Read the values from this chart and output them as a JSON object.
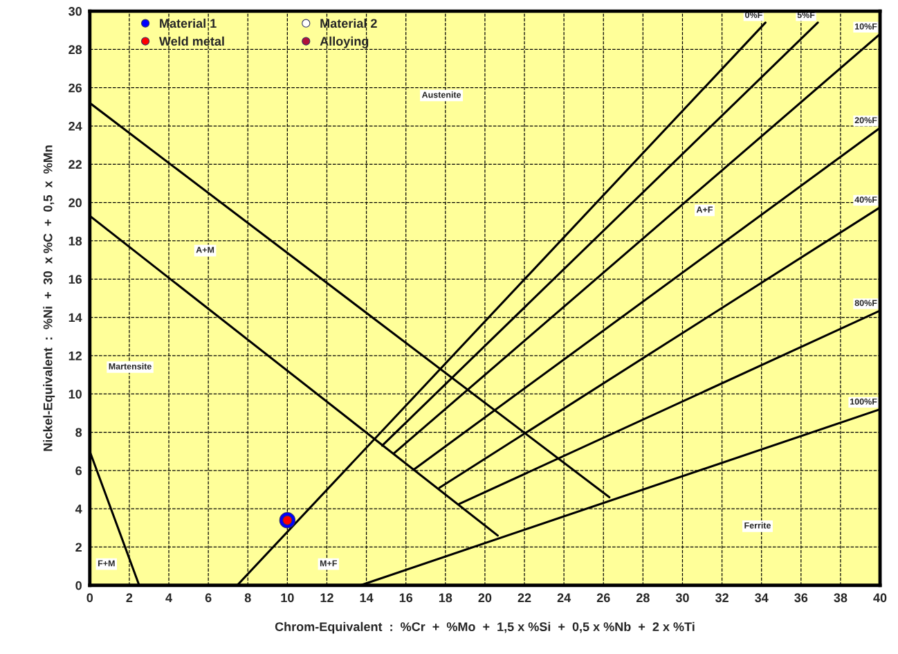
{
  "chart_data": {
    "type": "line",
    "xlabel": "Chrom-Equivalent  :  %Cr  +  %Mo  +  1,5 x %Si  +  0,5 x %Nb  +  2 x %Ti",
    "ylabel": "Nickel-Equivalent  :  %Ni  +  30  x %C  +  0,5  x  %Mn",
    "xlim": [
      0,
      40
    ],
    "ylim": [
      0,
      30
    ],
    "xticks": [
      0,
      2,
      4,
      6,
      8,
      10,
      12,
      14,
      16,
      18,
      20,
      22,
      24,
      26,
      28,
      30,
      32,
      34,
      36,
      38,
      40
    ],
    "yticks": [
      0,
      2,
      4,
      6,
      8,
      10,
      12,
      14,
      16,
      18,
      20,
      22,
      24,
      26,
      28,
      30
    ],
    "grid": true,
    "legend": "top left",
    "line_style": "solid",
    "series": [
      {
        "color": "#000000",
        "x": [
          0,
          2.5
        ],
        "values": [
          7,
          0
        ]
      },
      {
        "color": "#000000",
        "x": [
          0,
          26.3
        ],
        "values": [
          25.2,
          4.6
        ]
      },
      {
        "color": "#000000",
        "x": [
          0,
          20.65
        ],
        "values": [
          19.3,
          2.6
        ]
      },
      {
        "name": "0%F",
        "color": "#000000",
        "x": [
          7.46,
          34.2
        ],
        "values": [
          0,
          29.4
        ]
      },
      {
        "name": "5%F",
        "color": "#000000",
        "x": [
          14.8,
          36.85
        ],
        "values": [
          7.3,
          29.4
        ]
      },
      {
        "name": "10%F",
        "color": "#000000",
        "x": [
          15.4,
          40
        ],
        "values": [
          6.9,
          28.8
        ]
      },
      {
        "name": "20%F",
        "color": "#000000",
        "x": [
          16.4,
          40
        ],
        "values": [
          6.05,
          23.9
        ]
      },
      {
        "name": "40%F",
        "color": "#000000",
        "x": [
          17.7,
          40
        ],
        "values": [
          5.1,
          19.75
        ]
      },
      {
        "name": "80%F",
        "color": "#000000",
        "x": [
          18.7,
          40
        ],
        "values": [
          4.25,
          14.35
        ]
      },
      {
        "name": "100%F",
        "color": "#000000",
        "x": [
          13.7,
          40
        ],
        "values": [
          0,
          9.2
        ]
      },
      {
        "type": "scatter",
        "marker": "circle",
        "name": "Material 1",
        "color": "#0000ff",
        "x": [
          10
        ],
        "values": [
          3.4
        ]
      },
      {
        "type": "scatter",
        "marker": "circle",
        "name": "Material 2",
        "color": "#ffffff",
        "values": [
          null
        ]
      },
      {
        "type": "scatter",
        "marker": "circle",
        "name": "Weld metal",
        "color": "#ff0000",
        "x": [
          10
        ],
        "values": [
          3.4
        ]
      },
      {
        "type": "scatter",
        "marker": "circle",
        "name": "Alloying",
        "color": "#b0103a",
        "values": [
          null
        ]
      }
    ],
    "annotations": [
      "Austenite",
      "A+F",
      "A+M",
      "Martensite",
      "F+M",
      "M+F",
      "Ferrite"
    ]
  }
}
